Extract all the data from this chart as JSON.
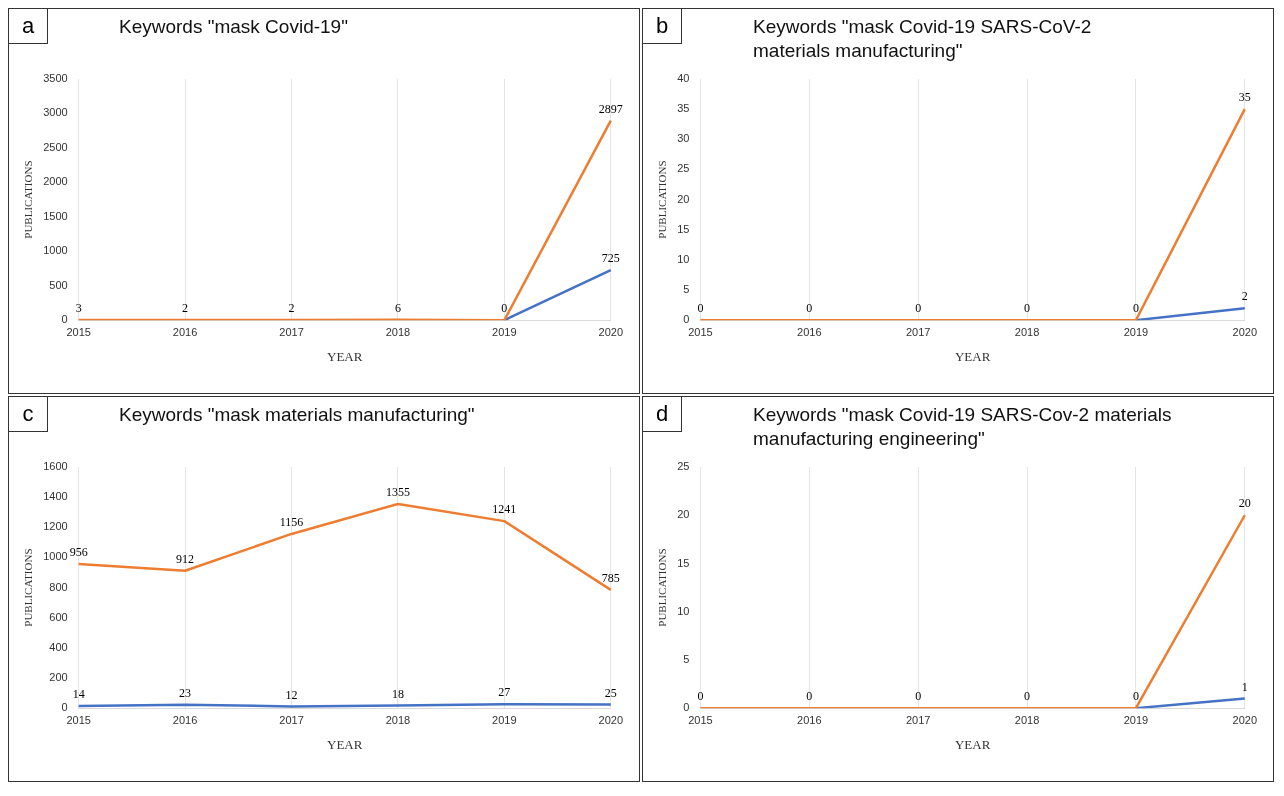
{
  "chart_data": [
    {
      "type": "line",
      "title": "Keywords \"mask Covid-19\"",
      "xlabel": "YEAR",
      "ylabel": "PUBLICATIONS",
      "annotations": [
        "a"
      ],
      "categories": [
        "2015",
        "2016",
        "2017",
        "2018",
        "2019",
        "2020"
      ],
      "series": [
        {
          "color": "#4472c4",
          "values": [
            null,
            null,
            null,
            null,
            0,
            725
          ],
          "value_labels": [
            null,
            null,
            null,
            null,
            null,
            "725"
          ]
        },
        {
          "color": "#ed7d31",
          "values": [
            3,
            2,
            2,
            6,
            0,
            2897
          ],
          "value_labels": [
            "3",
            "2",
            "2",
            "6",
            "0",
            "2897"
          ]
        }
      ],
      "ylim": [
        0,
        3500
      ],
      "yticks": [
        0,
        500,
        1000,
        1500,
        2000,
        2500,
        3000,
        3500
      ],
      "grid": "x",
      "legend": false,
      "marker": "none"
    },
    {
      "type": "line",
      "title": "Keywords \"mask Covid-19 SARS-CoV-2 materials manufacturing\"",
      "xlabel": "YEAR",
      "ylabel": "PUBLICATIONS",
      "annotations": [
        "b"
      ],
      "categories": [
        "2015",
        "2016",
        "2017",
        "2018",
        "2019",
        "2020"
      ],
      "series": [
        {
          "color": "#4472c4",
          "values": [
            null,
            null,
            null,
            null,
            0,
            2
          ],
          "value_labels": [
            null,
            null,
            null,
            null,
            null,
            "2"
          ]
        },
        {
          "color": "#ed7d31",
          "values": [
            0,
            0,
            0,
            0,
            0,
            35
          ],
          "value_labels": [
            "0",
            "0",
            "0",
            "0",
            "0",
            "35"
          ]
        }
      ],
      "ylim": [
        0,
        40
      ],
      "yticks": [
        0,
        5,
        10,
        15,
        20,
        25,
        30,
        35,
        40
      ],
      "grid": "x",
      "legend": false,
      "marker": "none"
    },
    {
      "type": "line",
      "title": "Keywords \"mask materials manufacturing\"",
      "xlabel": "YEAR",
      "ylabel": "PUBLICATIONS",
      "annotations": [
        "c"
      ],
      "categories": [
        "2015",
        "2016",
        "2017",
        "2018",
        "2019",
        "2020"
      ],
      "series": [
        {
          "color": "#4472c4",
          "values": [
            14,
            23,
            12,
            18,
            27,
            25
          ]
        },
        {
          "color": "#ed7d31",
          "values": [
            956,
            912,
            1156,
            1355,
            1241,
            785
          ]
        }
      ],
      "ylim": [
        0,
        1600
      ],
      "yticks": [
        0,
        200,
        400,
        600,
        800,
        1000,
        1200,
        1400,
        1600
      ],
      "grid": "x",
      "data_labels": true,
      "legend": false,
      "marker": "none"
    },
    {
      "type": "line",
      "title": "Keywords \"mask Covid-19 SARS-Cov-2 materials manufacturing engineering\"",
      "xlabel": "YEAR",
      "ylabel": "PUBLICATIONS",
      "annotations": [
        "d"
      ],
      "categories": [
        "2015",
        "2016",
        "2017",
        "2018",
        "2019",
        "2020"
      ],
      "series": [
        {
          "color": "#4472c4",
          "values": [
            null,
            null,
            null,
            null,
            0,
            1
          ],
          "value_labels": [
            null,
            null,
            null,
            null,
            null,
            "1"
          ]
        },
        {
          "color": "#ed7d31",
          "values": [
            0,
            0,
            0,
            0,
            0,
            20
          ],
          "value_labels": [
            "0",
            "0",
            "0",
            "0",
            "0",
            "20"
          ]
        }
      ],
      "ylim": [
        0,
        25
      ],
      "yticks": [
        0,
        5,
        10,
        15,
        20,
        25
      ],
      "grid": "x",
      "legend": false,
      "marker": "none"
    }
  ]
}
